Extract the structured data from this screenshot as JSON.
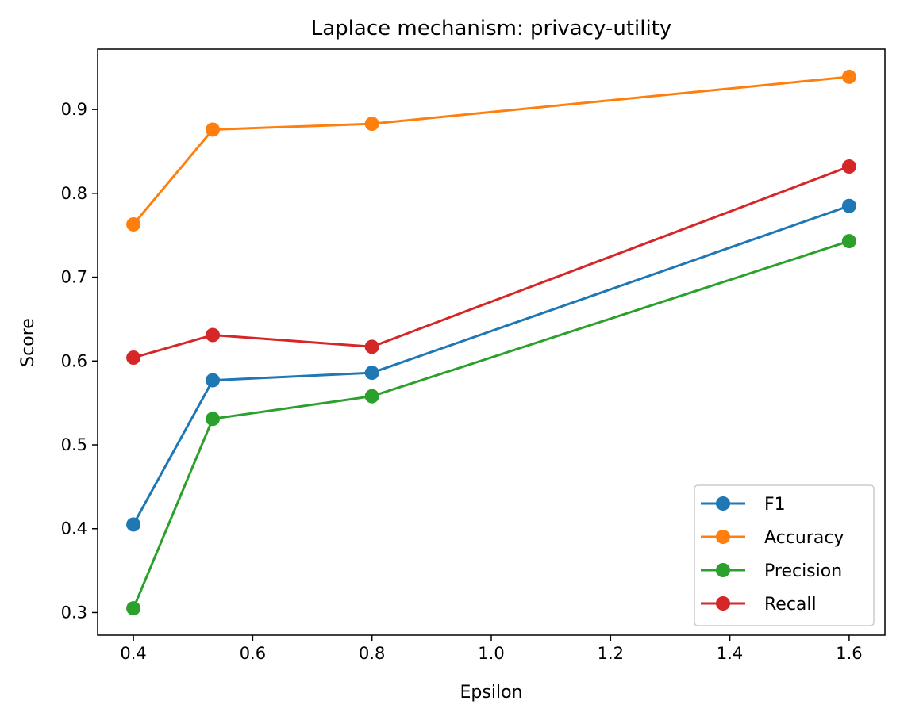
{
  "chart_data": {
    "type": "line",
    "title": "Laplace mechanism: privacy-utility",
    "xlabel": "Epsilon",
    "ylabel": "Score",
    "x": [
      0.4,
      0.533,
      0.8,
      1.6
    ],
    "xlim": [
      0.34,
      1.66
    ],
    "ylim": [
      0.273,
      0.972
    ],
    "xticks": [
      0.4,
      0.6,
      0.8,
      1.0,
      1.2,
      1.4,
      1.6
    ],
    "xtick_labels": [
      "0.4",
      "0.6",
      "0.8",
      "1.0",
      "1.2",
      "1.4",
      "1.6"
    ],
    "yticks": [
      0.3,
      0.4,
      0.5,
      0.6,
      0.7,
      0.8,
      0.9
    ],
    "ytick_labels": [
      "0.3",
      "0.4",
      "0.5",
      "0.6",
      "0.7",
      "0.8",
      "0.9"
    ],
    "grid": false,
    "legend_position": "bottom-right",
    "series": [
      {
        "name": "F1",
        "color": "#1f77b4",
        "values": [
          0.405,
          0.577,
          0.586,
          0.785
        ]
      },
      {
        "name": "Accuracy",
        "color": "#ff7f0e",
        "values": [
          0.763,
          0.876,
          0.883,
          0.939
        ]
      },
      {
        "name": "Precision",
        "color": "#2ca02c",
        "values": [
          0.305,
          0.531,
          0.558,
          0.743
        ]
      },
      {
        "name": "Recall",
        "color": "#d62728",
        "values": [
          0.604,
          0.631,
          0.617,
          0.832
        ]
      }
    ]
  }
}
